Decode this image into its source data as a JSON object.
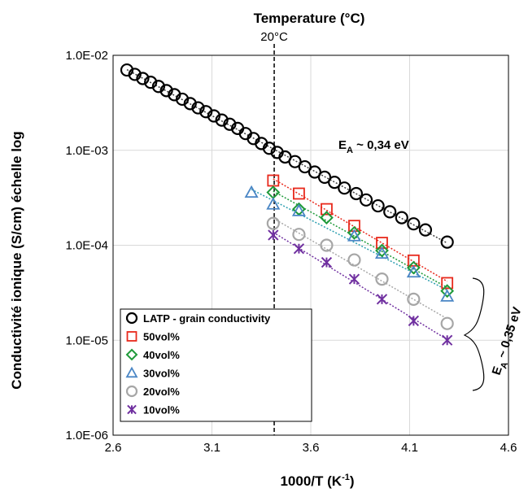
{
  "chart_data": {
    "type": "scatter",
    "title": "Temperature (°C)",
    "xlabel_main": "1000/T (K",
    "xlabel_sup": "-1",
    "xlabel_close": ")",
    "ylabel": "Conductivité ionique (S/cm) échelle log",
    "x_ticks": [
      "2.6",
      "3.1",
      "3.6",
      "4.1",
      "4.6"
    ],
    "x_tick_values": [
      2.6,
      3.1,
      3.6,
      4.1,
      4.6
    ],
    "y_ticks": [
      "1.0E-06",
      "1.0E-05",
      "1.0E-04",
      "1.0E-03",
      "1.0E-02"
    ],
    "y_tick_values": [
      1e-06,
      1e-05,
      0.0001,
      0.001,
      0.01
    ],
    "xlim": [
      2.6,
      4.6
    ],
    "ylim": [
      1e-06,
      0.01
    ],
    "y_scale": "log",
    "grid": true,
    "legend_position": "bottom-left",
    "reference_line": {
      "x": 3.415,
      "label": "20°C"
    },
    "annotations": {
      "ea_top": {
        "main": "E",
        "sub": "A",
        "rest": " ~ 0,34 eV"
      },
      "ea_bottom": {
        "main": "E",
        "sub": "A",
        "rest": " ~ 0,35 eV"
      }
    },
    "series": [
      {
        "name": "LATP - grain conductivity",
        "marker": "circle",
        "color": "#000000",
        "fill": "none",
        "fit_color": "#404040",
        "x": [
          2.67,
          2.71,
          2.75,
          2.79,
          2.83,
          2.87,
          2.91,
          2.95,
          2.99,
          3.03,
          3.07,
          3.11,
          3.15,
          3.19,
          3.23,
          3.27,
          3.31,
          3.35,
          3.39,
          3.43,
          3.47,
          3.52,
          3.57,
          3.62,
          3.67,
          3.72,
          3.77,
          3.83,
          3.88,
          3.94,
          4.0,
          4.06,
          4.12,
          4.18,
          4.29
        ],
        "y": [
          0.007,
          0.0063,
          0.0057,
          0.0052,
          0.0047,
          0.00425,
          0.00385,
          0.00345,
          0.0031,
          0.0028,
          0.00255,
          0.0023,
          0.00208,
          0.00188,
          0.0017,
          0.0015,
          0.00133,
          0.00118,
          0.00105,
          0.00095,
          0.00085,
          0.00076,
          0.00067,
          0.00059,
          0.00052,
          0.00046,
          0.0004,
          0.00035,
          0.0003,
          0.00026,
          0.000225,
          0.000195,
          0.000168,
          0.000145,
          0.000108
        ]
      },
      {
        "name": "50vol%",
        "marker": "square",
        "color": "#e8291c",
        "fill": "none",
        "fit_color": "#e8291c",
        "x": [
          3.41,
          3.54,
          3.68,
          3.82,
          3.96,
          4.12,
          4.29
        ],
        "y": [
          0.00048,
          0.00035,
          0.00024,
          0.00016,
          0.000106,
          6.9e-05,
          4e-05
        ]
      },
      {
        "name": "40vol%",
        "marker": "diamond",
        "color": "#1f9a3a",
        "fill": "none",
        "fit_color": "#1f9a3a",
        "x": [
          3.41,
          3.54,
          3.68,
          3.82,
          3.96,
          4.12,
          4.29
        ],
        "y": [
          0.00036,
          0.00024,
          0.000195,
          0.000135,
          8.8e-05,
          5.8e-05,
          3.3e-05
        ]
      },
      {
        "name": "30vol%",
        "marker": "triangle",
        "color": "#4a86c5",
        "fill": "none",
        "fit_color": "#2e9fb0",
        "x": [
          3.3,
          3.41,
          3.54,
          3.82,
          3.96,
          4.12,
          4.29
        ],
        "y": [
          0.00036,
          0.00027,
          0.00023,
          0.000125,
          8.2e-05,
          5.2e-05,
          2.9e-05
        ]
      },
      {
        "name": "20vol%",
        "marker": "circle",
        "color": "#a6a6a6",
        "fill": "none",
        "fit_color": "#a6a6a6",
        "x": [
          3.41,
          3.54,
          3.68,
          3.82,
          3.96,
          4.12,
          4.29
        ],
        "y": [
          0.00017,
          0.00013,
          0.0001,
          7e-05,
          4.4e-05,
          2.7e-05,
          1.5e-05
        ]
      },
      {
        "name": "10vol%",
        "marker": "star",
        "color": "#7030a0",
        "fill": "none",
        "fit_color": "#7030a0",
        "x": [
          3.41,
          3.54,
          3.68,
          3.82,
          3.96,
          4.12,
          4.29
        ],
        "y": [
          0.000128,
          9.2e-05,
          6.6e-05,
          4.4e-05,
          2.7e-05,
          1.6e-05,
          1e-05
        ]
      }
    ]
  }
}
